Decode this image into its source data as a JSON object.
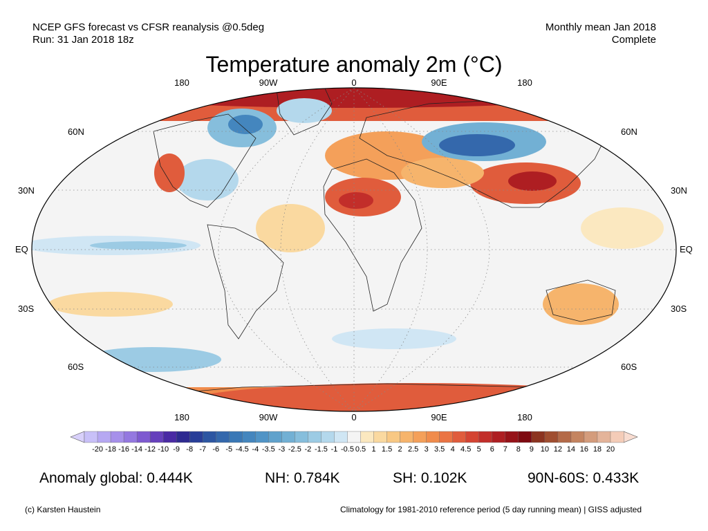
{
  "header": {
    "source_line": "NCEP GFS forecast vs CFSR reanalysis @0.5deg",
    "run_line": "Run: 31 Jan 2018 18z",
    "period_line": "Monthly mean Jan 2018",
    "status_line": "Complete"
  },
  "title": "Temperature anomaly 2m (°C)",
  "axes": {
    "lon_labels_top": [
      "180",
      "90W",
      "0",
      "90E",
      "180"
    ],
    "lon_labels_bottom": [
      "180",
      "90W",
      "0",
      "90E",
      "180"
    ],
    "lat_labels_left": [
      "60N",
      "30N",
      "EQ",
      "30S",
      "60S"
    ],
    "lat_labels_right": [
      "60N",
      "30N",
      "EQ",
      "30S",
      "60S"
    ]
  },
  "colorbar": {
    "ticks": [
      "-20",
      "-18",
      "-16",
      "-14",
      "-12",
      "-10",
      "-9",
      "-8",
      "-7",
      "-6",
      "-5",
      "-4.5",
      "-4",
      "-3.5",
      "-3",
      "-2.5",
      "-2",
      "-1.5",
      "-1",
      "-0.5",
      "0.5",
      "1",
      "1.5",
      "2",
      "2.5",
      "3",
      "3.5",
      "4",
      "4.5",
      "5",
      "6",
      "7",
      "8",
      "9",
      "10",
      "12",
      "14",
      "16",
      "18",
      "20"
    ],
    "colors": [
      "#c8c0f8",
      "#b6a8f2",
      "#a690ea",
      "#9478e0",
      "#7e5ad0",
      "#6640bc",
      "#4a2aa4",
      "#2e2a90",
      "#283e98",
      "#2c56a2",
      "#3468ac",
      "#3a78b6",
      "#4486be",
      "#5094c6",
      "#60a2cc",
      "#72b0d4",
      "#86bedc",
      "#9ccbe4",
      "#b4d8ec",
      "#d0e6f4",
      "#f4f4f4",
      "#fbe8c0",
      "#fad9a0",
      "#f8c884",
      "#f6b46c",
      "#f4a05a",
      "#f08c4c",
      "#ea7444",
      "#e05c3c",
      "#d44432",
      "#c22e2a",
      "#ae1e22",
      "#961218",
      "#7e0a10",
      "#8c3420",
      "#a04e30",
      "#b46a48",
      "#c48460",
      "#d49c7c",
      "#e4b49a",
      "#f4ccb8"
    ],
    "under_color": "#d8d0fa",
    "over_color": "#f8dcd0"
  },
  "stats": {
    "global": "Anomaly global: 0.444K",
    "nh": "NH: 0.784K",
    "sh": "SH: 0.102K",
    "arctic": "90N-60S: 0.433K"
  },
  "footer": {
    "credit": "(c) Karsten Haustein",
    "note": "Climatology for 1981-2010 reference period (5 day running mean) | GISS adjusted"
  }
}
